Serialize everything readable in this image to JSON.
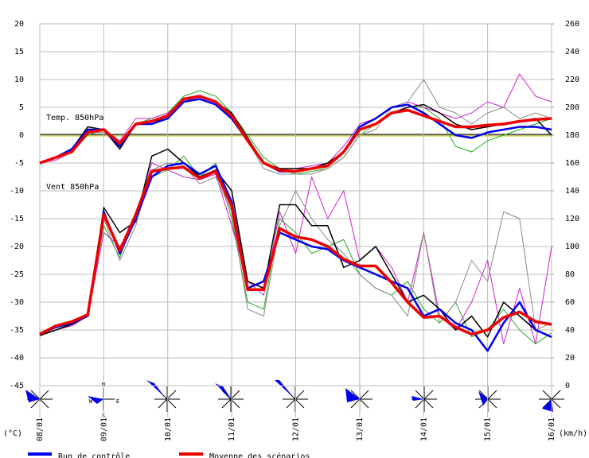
{
  "chart_data": {
    "type": "line",
    "annotations": [
      "Temp. 850hPa",
      "Vent 850hPa"
    ],
    "x": [
      0,
      0.25,
      0.5,
      0.75,
      1,
      1.25,
      1.5,
      1.75,
      2,
      2.25,
      2.5,
      2.75,
      3,
      3.25,
      3.5,
      3.75,
      4,
      4.25,
      4.5,
      4.75,
      5,
      5.25,
      5.5,
      5.75,
      6,
      6.25,
      6.5,
      6.75,
      7,
      7.25,
      7.5,
      7.75,
      8
    ],
    "xlim": [
      0,
      8
    ],
    "xticks": [
      {
        "value": 0,
        "label": "08/01"
      },
      {
        "value": 1,
        "label": "09/01"
      },
      {
        "value": 2,
        "label": "10/01"
      },
      {
        "value": 3,
        "label": "11/01"
      },
      {
        "value": 4,
        "label": "12/01"
      },
      {
        "value": 5,
        "label": "13/01"
      },
      {
        "value": 6,
        "label": "14/01"
      },
      {
        "value": 7,
        "label": "15/01"
      },
      {
        "value": 8,
        "label": "16/01"
      }
    ],
    "ylabel": "(°C)",
    "y2label": "(km/h)",
    "ylim": [
      -45,
      20
    ],
    "yticks": [
      -45,
      -40,
      -35,
      -30,
      -25,
      -20,
      -15,
      -10,
      -5,
      0,
      5,
      10,
      15,
      20
    ],
    "y2lim": [
      0,
      260
    ],
    "y2ticks": [
      0,
      20,
      40,
      60,
      80,
      100,
      120,
      140,
      160,
      180,
      200,
      220,
      240,
      260
    ],
    "grid": true,
    "compass": {
      "n": "N",
      "e": "E",
      "s": "S",
      "w": "W"
    },
    "series": [
      {
        "color": "#22aa22",
        "values": [
          -5,
          -4,
          -3,
          0,
          1,
          -2,
          2,
          3,
          4,
          7,
          8,
          7,
          4,
          0,
          -4,
          -6,
          -7,
          -6.5,
          -6,
          -4,
          0,
          2,
          4,
          5,
          5,
          3,
          -2,
          -3,
          -1,
          0,
          1,
          2,
          3
        ]
      },
      {
        "color": "#cc22cc",
        "values": [
          -5,
          -4.5,
          -3,
          1,
          1,
          -1,
          3,
          3,
          4,
          6,
          7,
          6,
          3,
          -1,
          -5,
          -6,
          -6,
          -5.5,
          -5,
          -2,
          2,
          3,
          5,
          6,
          5,
          4,
          3,
          4,
          6,
          5,
          11,
          7,
          6
        ]
      },
      {
        "color": "#888888",
        "values": [
          -5,
          -4,
          -3,
          0.5,
          0.5,
          -1.5,
          2,
          2,
          3,
          6,
          7,
          6,
          4,
          -1,
          -6,
          -7,
          -7,
          -7,
          -6,
          -4,
          0,
          1,
          5,
          6,
          10,
          5,
          4,
          2,
          4,
          5,
          3,
          4,
          3
        ]
      },
      {
        "color": "#000000",
        "values": [
          -5,
          -4,
          -2.5,
          1.5,
          1,
          -2.5,
          2,
          2,
          3.5,
          6.5,
          7,
          6,
          4,
          -0.5,
          -5,
          -6,
          -6,
          -6,
          -5,
          -3,
          1,
          2,
          4,
          5,
          5.5,
          4,
          2,
          1,
          1.5,
          2,
          2.5,
          3,
          0
        ]
      },
      {
        "color": "#22aa22",
        "axis": "y2",
        "values": [
          37,
          40,
          45,
          50,
          115,
          92,
          125,
          150,
          155,
          165,
          150,
          160,
          120,
          60,
          55,
          120,
          110,
          95,
          100,
          105,
          80,
          70,
          65,
          75,
          55,
          45,
          60,
          35,
          40,
          55,
          40,
          30,
          38
        ]
      },
      {
        "color": "#cc22cc",
        "axis": "y2",
        "values": [
          36,
          40,
          43,
          50,
          110,
          100,
          118,
          160,
          155,
          150,
          148,
          152,
          115,
          75,
          65,
          125,
          95,
          150,
          120,
          140,
          90,
          100,
          85,
          60,
          110,
          50,
          40,
          60,
          90,
          30,
          70,
          30,
          100
        ]
      },
      {
        "color": "#888888",
        "axis": "y2",
        "values": [
          38,
          42,
          46,
          52,
          120,
          90,
          115,
          155,
          160,
          158,
          145,
          150,
          125,
          55,
          50,
          115,
          140,
          120,
          105,
          95,
          80,
          70,
          65,
          50,
          110,
          45,
          60,
          90,
          75,
          125,
          120,
          40,
          45
        ]
      },
      {
        "color": "#000000",
        "axis": "y2",
        "values": [
          36,
          40,
          44,
          50,
          128,
          110,
          118,
          165,
          170,
          160,
          150,
          155,
          140,
          75,
          70,
          130,
          130,
          115,
          115,
          85,
          90,
          100,
          80,
          60,
          65,
          55,
          40,
          50,
          35,
          60,
          50,
          40,
          35
        ]
      },
      {
        "name": "Run de contrôle",
        "color": "#0000ee",
        "values": [
          -5,
          -4,
          -2.5,
          1,
          1,
          -2,
          2,
          2,
          3,
          6,
          6.5,
          5.5,
          3,
          -1,
          -5,
          -6.5,
          -6.5,
          -6,
          -5.5,
          -3,
          1.5,
          3,
          5,
          5.5,
          4,
          2,
          0,
          -0.5,
          0.5,
          1,
          1.5,
          1.5,
          1
        ]
      },
      {
        "color": "#0000ee",
        "axis": "y2",
        "values": [
          37,
          42,
          45,
          50,
          125,
          95,
          120,
          150,
          158,
          160,
          152,
          158,
          132,
          70,
          75,
          110,
          105,
          100,
          98,
          90,
          85,
          80,
          75,
          70,
          50,
          55,
          45,
          40,
          25,
          45,
          60,
          40,
          35
        ]
      },
      {
        "name": "Moyenne des scénarios",
        "color": "#ee0000",
        "values": [
          -5,
          -4,
          -3,
          0.5,
          1,
          -1.5,
          2,
          2.5,
          3.5,
          6.5,
          7,
          6,
          3.5,
          -1,
          -5,
          -6.3,
          -6.5,
          -6,
          -5.5,
          -3,
          1,
          2,
          4,
          4.5,
          3.5,
          2.5,
          1.5,
          1.5,
          1.8,
          2,
          2.5,
          2.8,
          3
        ]
      },
      {
        "color": "#ee0000",
        "axis": "y2",
        "values": [
          37,
          43,
          46,
          51,
          123,
          97,
          123,
          154,
          156,
          157,
          149,
          154,
          129,
          69,
          69,
          113,
          107,
          105,
          100,
          91,
          86,
          86,
          74,
          60,
          49,
          50,
          42,
          37,
          40,
          49,
          53,
          46,
          44
        ]
      }
    ]
  }
}
